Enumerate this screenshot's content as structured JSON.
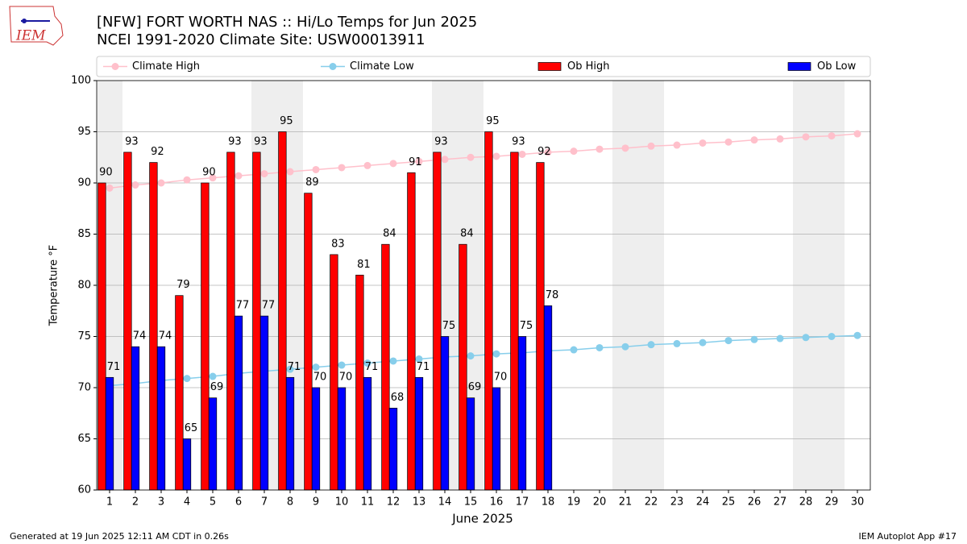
{
  "chart_data": {
    "type": "bar",
    "title": "[NFW] FORT WORTH NAS :: Hi/Lo Temps for Jun 2025",
    "subtitle": "NCEI 1991-2020 Climate Site: USW00013911",
    "xlabel": "June 2025",
    "ylabel": "Temperature °F",
    "logo_text": "IEM",
    "footer_left": "Generated at 19 Jun 2025 12:11 AM CDT in 0.26s",
    "footer_right": "IEM Autoplot App #17",
    "x": [
      1,
      2,
      3,
      4,
      5,
      6,
      7,
      8,
      9,
      10,
      11,
      12,
      13,
      14,
      15,
      16,
      17,
      18,
      19,
      20,
      21,
      22,
      23,
      24,
      25,
      26,
      27,
      28,
      29,
      30
    ],
    "xlim": [
      0.5,
      30.5
    ],
    "xticks": [
      1,
      2,
      3,
      4,
      5,
      6,
      7,
      8,
      9,
      10,
      11,
      12,
      13,
      14,
      15,
      16,
      17,
      18,
      19,
      20,
      21,
      22,
      23,
      24,
      25,
      26,
      27,
      28,
      29,
      30
    ],
    "ylim": [
      60,
      100
    ],
    "yticks": [
      60,
      65,
      70,
      75,
      80,
      85,
      90,
      95,
      100
    ],
    "grid": true,
    "legend": "top",
    "shaded_days": [
      1,
      7,
      8,
      14,
      15,
      21,
      22,
      28,
      29
    ],
    "shade_color": "#eeeeee",
    "series": [
      {
        "name": "Climate High",
        "type": "line",
        "color": "#ffc0cb",
        "values": [
          89.5,
          89.8,
          90.0,
          90.3,
          90.5,
          90.7,
          90.9,
          91.1,
          91.3,
          91.5,
          91.7,
          91.9,
          92.1,
          92.3,
          92.5,
          92.6,
          92.8,
          93.0,
          93.1,
          93.3,
          93.4,
          93.6,
          93.7,
          93.9,
          94.0,
          94.2,
          94.3,
          94.5,
          94.6,
          94.8
        ]
      },
      {
        "name": "Climate Low",
        "type": "line",
        "color": "#87ceeb",
        "values": [
          70.2,
          70.4,
          70.7,
          70.9,
          71.1,
          71.4,
          71.6,
          71.8,
          72.0,
          72.2,
          72.4,
          72.6,
          72.8,
          73.0,
          73.1,
          73.3,
          73.4,
          73.6,
          73.7,
          73.9,
          74.0,
          74.2,
          74.3,
          74.4,
          74.6,
          74.7,
          74.8,
          74.9,
          75.0,
          75.1
        ]
      },
      {
        "name": "Ob High",
        "type": "bar",
        "color": "#ff0000",
        "offset": -0.3,
        "values": [
          90,
          93,
          92,
          79,
          90,
          93,
          93,
          95,
          89,
          83,
          81,
          84,
          91,
          93,
          84,
          95,
          93,
          92,
          null,
          null,
          null,
          null,
          null,
          null,
          null,
          null,
          null,
          null,
          null,
          null
        ]
      },
      {
        "name": "Ob Low",
        "type": "bar",
        "color": "#0000ff",
        "offset": 0,
        "values": [
          71,
          74,
          74,
          65,
          69,
          77,
          77,
          71,
          70,
          70,
          71,
          68,
          71,
          75,
          69,
          70,
          75,
          78,
          null,
          null,
          null,
          null,
          null,
          null,
          null,
          null,
          null,
          null,
          null,
          null
        ]
      }
    ]
  }
}
